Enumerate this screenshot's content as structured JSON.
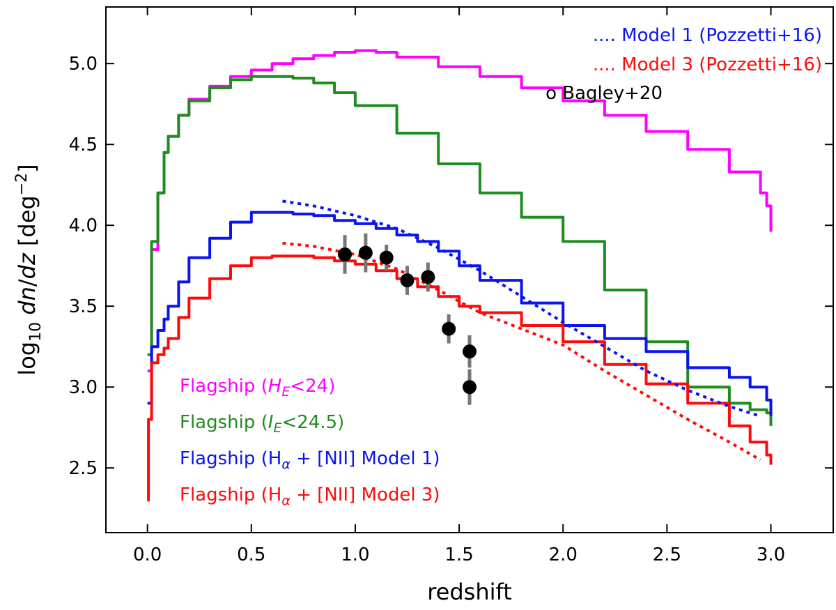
{
  "chart_data": {
    "type": "line",
    "title": "",
    "xlabel": "redshift",
    "ylabel": {
      "prefix": "log",
      "sub": "10",
      "middle_1": "dn",
      "middle_2": "/",
      "middle_3": "dz",
      "unit_open": "[deg",
      "sup": "−2",
      "unit_close": "]"
    },
    "xlim": [
      -0.2,
      3.3
    ],
    "ylim": [
      2.1,
      5.35
    ],
    "xticks": [
      "0.0",
      "0.5",
      "1.0",
      "1.5",
      "2.0",
      "2.5",
      "3.0"
    ],
    "xtick_values": [
      0.0,
      0.5,
      1.0,
      1.5,
      2.0,
      2.5,
      3.0
    ],
    "yticks": [
      "2.5",
      "3.0",
      "3.5",
      "4.0",
      "4.5",
      "5.0"
    ],
    "ytick_values": [
      2.5,
      3.0,
      3.5,
      4.0,
      4.5,
      5.0
    ],
    "series": [
      {
        "name": "Flagship HE<24",
        "color": "#ff00ff",
        "style": "solid",
        "x": [
          0.0,
          0.02,
          0.05,
          0.08,
          0.1,
          0.15,
          0.2,
          0.3,
          0.4,
          0.5,
          0.6,
          0.7,
          0.8,
          0.9,
          1.0,
          1.1,
          1.2,
          1.4,
          1.6,
          1.8,
          2.0,
          2.2,
          2.4,
          2.6,
          2.8,
          2.95,
          2.98,
          3.0
        ],
        "y": [
          3.1,
          3.85,
          4.2,
          4.45,
          4.55,
          4.68,
          4.78,
          4.86,
          4.92,
          4.96,
          5.0,
          5.03,
          5.05,
          5.07,
          5.08,
          5.07,
          5.04,
          4.98,
          4.92,
          4.85,
          4.77,
          4.68,
          4.58,
          4.47,
          4.33,
          4.2,
          4.12,
          3.96
        ]
      },
      {
        "name": "Flagship IE<24.5",
        "color": "#1e8c1e",
        "style": "solid",
        "x": [
          0.0,
          0.02,
          0.05,
          0.08,
          0.1,
          0.15,
          0.2,
          0.3,
          0.4,
          0.5,
          0.6,
          0.7,
          0.8,
          0.9,
          1.0,
          1.2,
          1.4,
          1.6,
          1.8,
          2.0,
          2.2,
          2.4,
          2.6,
          2.8,
          2.9,
          2.98,
          3.0
        ],
        "y": [
          3.2,
          3.9,
          4.2,
          4.45,
          4.55,
          4.68,
          4.77,
          4.85,
          4.9,
          4.92,
          4.92,
          4.91,
          4.88,
          4.82,
          4.74,
          4.57,
          4.38,
          4.2,
          4.05,
          3.9,
          3.6,
          3.28,
          3.0,
          2.9,
          2.86,
          2.84,
          2.76
        ]
      },
      {
        "name": "Flagship Ha+[NII] Model 1",
        "color": "#0a14f0",
        "style": "solid",
        "x": [
          0.0,
          0.02,
          0.05,
          0.08,
          0.1,
          0.15,
          0.2,
          0.3,
          0.4,
          0.5,
          0.6,
          0.7,
          0.8,
          0.9,
          1.0,
          1.1,
          1.2,
          1.3,
          1.4,
          1.5,
          1.6,
          1.8,
          2.0,
          2.2,
          2.4,
          2.6,
          2.8,
          2.9,
          2.98,
          3.0
        ],
        "y": [
          2.9,
          3.25,
          3.35,
          3.42,
          3.5,
          3.65,
          3.8,
          3.92,
          4.02,
          4.08,
          4.08,
          4.07,
          4.06,
          4.03,
          4.01,
          3.98,
          3.94,
          3.9,
          3.84,
          3.75,
          3.66,
          3.52,
          3.38,
          3.3,
          3.22,
          3.12,
          3.06,
          3.0,
          2.92,
          2.82
        ]
      },
      {
        "name": "Flagship Ha+[NII] Model 3",
        "color": "#ff0a0a",
        "style": "solid",
        "x": [
          0.0,
          0.005,
          0.02,
          0.05,
          0.08,
          0.1,
          0.15,
          0.2,
          0.3,
          0.4,
          0.5,
          0.6,
          0.7,
          0.8,
          0.9,
          1.0,
          1.1,
          1.2,
          1.3,
          1.4,
          1.5,
          1.6,
          1.8,
          2.0,
          2.2,
          2.4,
          2.6,
          2.8,
          2.9,
          2.98,
          3.0
        ],
        "y": [
          2.3,
          2.8,
          3.15,
          3.2,
          3.24,
          3.3,
          3.43,
          3.55,
          3.67,
          3.75,
          3.8,
          3.81,
          3.81,
          3.8,
          3.78,
          3.76,
          3.72,
          3.67,
          3.62,
          3.56,
          3.5,
          3.46,
          3.38,
          3.28,
          3.14,
          3.02,
          2.9,
          2.76,
          2.66,
          2.58,
          2.52
        ]
      },
      {
        "name": "Model 1 (Pozzetti+16)",
        "color": "#0a14f0",
        "style": "dotted",
        "x": [
          0.65,
          0.8,
          0.9,
          1.0,
          1.2,
          1.4,
          1.6,
          1.8,
          2.0,
          2.2,
          2.4,
          2.6,
          2.8,
          2.95
        ],
        "y": [
          4.15,
          4.12,
          4.09,
          4.06,
          3.98,
          3.86,
          3.72,
          3.56,
          3.4,
          3.25,
          3.1,
          2.98,
          2.88,
          2.82
        ]
      },
      {
        "name": "Model 3 (Pozzetti+16)",
        "color": "#ff0a0a",
        "style": "dotted",
        "x": [
          0.65,
          0.8,
          1.0,
          1.2,
          1.4,
          1.6,
          1.8,
          2.0,
          2.2,
          2.4,
          2.6,
          2.8,
          2.95
        ],
        "y": [
          3.89,
          3.87,
          3.82,
          3.73,
          3.6,
          3.46,
          3.36,
          3.26,
          3.1,
          2.95,
          2.8,
          2.66,
          2.55
        ]
      }
    ],
    "points": {
      "name": "Bagley+20",
      "x": [
        0.95,
        1.05,
        1.15,
        1.25,
        1.35,
        1.45,
        1.55,
        1.55
      ],
      "y": [
        3.82,
        3.83,
        3.8,
        3.66,
        3.68,
        3.36,
        3.22,
        3.0
      ],
      "err": [
        0.12,
        0.12,
        0.08,
        0.09,
        0.09,
        0.09,
        0.1,
        0.11
      ]
    },
    "legend": {
      "position": "top-right",
      "items": [
        {
          "marker": "....",
          "text": "Model 1 (Pozzetti+16)",
          "color": "#0a14f0"
        },
        {
          "marker": "....",
          "text": "Model 3 (Pozzetti+16)",
          "color": "#ff0a0a"
        },
        {
          "marker": "o",
          "text": "Bagley+20",
          "color": "#000000"
        }
      ]
    },
    "labels": {
      "position": "bottom-left",
      "items": [
        {
          "color": "#ff00ff",
          "before": "Flagship (",
          "math": "H",
          "sub": "E",
          "after": "<24)"
        },
        {
          "color": "#1e8c1e",
          "before": "Flagship (",
          "math": "I",
          "sub": "E",
          "after": "<24.5)"
        },
        {
          "color": "#0a14f0",
          "before": "Flagship (H",
          "sub": "α",
          "after": " + [NII] Model 1)"
        },
        {
          "color": "#ff0a0a",
          "before": "Flagship (H",
          "sub": "α",
          "after": " + [NII] Model 3)"
        }
      ]
    }
  }
}
